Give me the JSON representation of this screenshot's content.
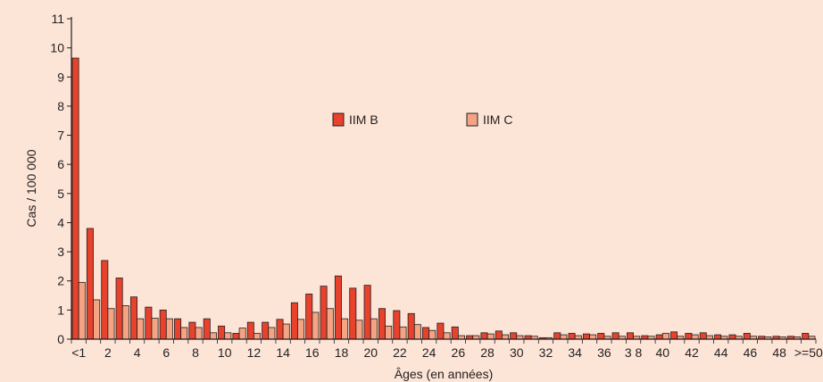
{
  "chart_data": {
    "type": "bar",
    "ylabel": "Cas / 100 000",
    "xlabel": "Âges (en années)",
    "ylim": [
      0,
      11
    ],
    "y_ticks": [
      "0",
      "1",
      "2",
      "3",
      "4",
      "5",
      "6",
      "7",
      "8",
      "9",
      "10",
      "11"
    ],
    "x_ticks": [
      "<1",
      "2",
      "4",
      "6",
      "8",
      "10",
      "12",
      "14",
      "16",
      "18",
      "20",
      "22",
      "24",
      "26",
      "28",
      "30",
      "32",
      "34",
      "36",
      "3 8",
      "40",
      "42",
      "44",
      "46",
      "48",
      ">=50"
    ],
    "categories": [
      "<1",
      "1",
      "2",
      "3",
      "4",
      "5",
      "6",
      "7",
      "8",
      "9",
      "10",
      "11",
      "12",
      "13",
      "14",
      "15",
      "16",
      "17",
      "18",
      "19",
      "20",
      "21",
      "22",
      "23",
      "24",
      "25",
      "26",
      "27",
      "28",
      "29",
      "30",
      "31",
      "32",
      "33",
      "34",
      "35",
      "36",
      "37",
      "38",
      "39",
      "40",
      "41",
      "42",
      "43",
      "44",
      "45",
      "46",
      "47",
      "48",
      "49",
      ">=50"
    ],
    "series": [
      {
        "name": "IIM B",
        "color": "#e8412c",
        "values": [
          9.65,
          3.8,
          2.7,
          2.1,
          1.45,
          1.1,
          1.0,
          0.7,
          0.58,
          0.7,
          0.45,
          0.2,
          0.58,
          0.58,
          0.68,
          1.25,
          1.55,
          1.82,
          2.17,
          1.75,
          1.85,
          1.05,
          0.98,
          0.88,
          0.4,
          0.55,
          0.42,
          0.12,
          0.22,
          0.28,
          0.22,
          0.12,
          0.05,
          0.22,
          0.2,
          0.18,
          0.2,
          0.22,
          0.22,
          0.12,
          0.15,
          0.25,
          0.2,
          0.22,
          0.15,
          0.15,
          0.2,
          0.1,
          0.1,
          0.1,
          0.2
        ]
      },
      {
        "name": "IIM C",
        "color": "#f4a383",
        "values": [
          1.95,
          1.35,
          1.05,
          1.15,
          0.7,
          0.72,
          0.7,
          0.4,
          0.4,
          0.22,
          0.22,
          0.38,
          0.2,
          0.4,
          0.52,
          0.68,
          0.92,
          1.05,
          0.7,
          0.65,
          0.7,
          0.45,
          0.42,
          0.5,
          0.3,
          0.22,
          0.12,
          0.12,
          0.18,
          0.15,
          0.12,
          0.1,
          0.05,
          0.15,
          0.12,
          0.15,
          0.1,
          0.1,
          0.1,
          0.1,
          0.2,
          0.1,
          0.15,
          0.12,
          0.1,
          0.1,
          0.1,
          0.08,
          0.08,
          0.08,
          0.1
        ]
      }
    ],
    "grid": false,
    "legend": "top-center"
  }
}
